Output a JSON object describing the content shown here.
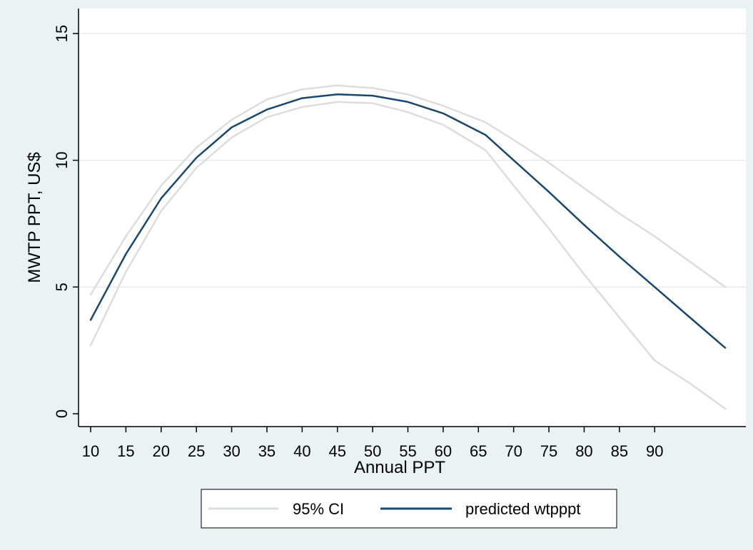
{
  "chart_data": {
    "type": "line",
    "title": "",
    "xlabel": "Annual PPT",
    "ylabel": "MWTP PPT, US$",
    "xlim": [
      10,
      100
    ],
    "ylim": [
      0,
      15
    ],
    "x_ticks": [
      10,
      15,
      20,
      25,
      30,
      35,
      40,
      45,
      50,
      55,
      60,
      65,
      70,
      75,
      80,
      85,
      90
    ],
    "y_ticks": [
      0,
      5,
      10,
      15
    ],
    "grid": "horizontal",
    "legend_position": "bottom",
    "series": [
      {
        "name": "predicted wtpppt",
        "color": "#1a476f",
        "x": [
          10,
          15,
          20,
          25,
          30,
          35,
          40,
          45,
          50,
          55,
          60,
          66,
          70,
          75,
          80,
          85,
          90,
          95,
          100
        ],
        "y": [
          3.7,
          6.3,
          8.5,
          10.1,
          11.3,
          12.0,
          12.45,
          12.6,
          12.55,
          12.3,
          11.85,
          11.0,
          10.0,
          8.75,
          7.45,
          6.2,
          5.0,
          3.8,
          2.6
        ]
      },
      {
        "name": "95% CI",
        "color": "#d9dedf",
        "x": [
          10,
          15,
          20,
          25,
          30,
          35,
          40,
          45,
          50,
          55,
          60,
          66,
          70,
          75,
          80,
          85,
          90,
          95,
          100
        ],
        "y": [
          4.7,
          7.0,
          9.0,
          10.5,
          11.6,
          12.4,
          12.8,
          12.95,
          12.85,
          12.6,
          12.15,
          11.5,
          10.8,
          9.9,
          8.9,
          7.9,
          7.0,
          6.0,
          5.0
        ]
      },
      {
        "name": "95% CI lower",
        "legend": false,
        "color": "#d9dedf",
        "x": [
          10,
          15,
          20,
          25,
          30,
          35,
          40,
          45,
          50,
          55,
          60,
          66,
          70,
          75,
          80,
          85,
          90,
          95,
          100
        ],
        "y": [
          2.7,
          5.6,
          8.0,
          9.7,
          10.9,
          11.7,
          12.1,
          12.3,
          12.25,
          11.9,
          11.4,
          10.4,
          9.0,
          7.3,
          5.5,
          3.8,
          2.1,
          1.2,
          0.2
        ]
      }
    ],
    "legend": [
      {
        "label": "95% CI",
        "color": "#d9dedf"
      },
      {
        "label": "predicted wtpppt",
        "color": "#1a476f"
      }
    ]
  }
}
